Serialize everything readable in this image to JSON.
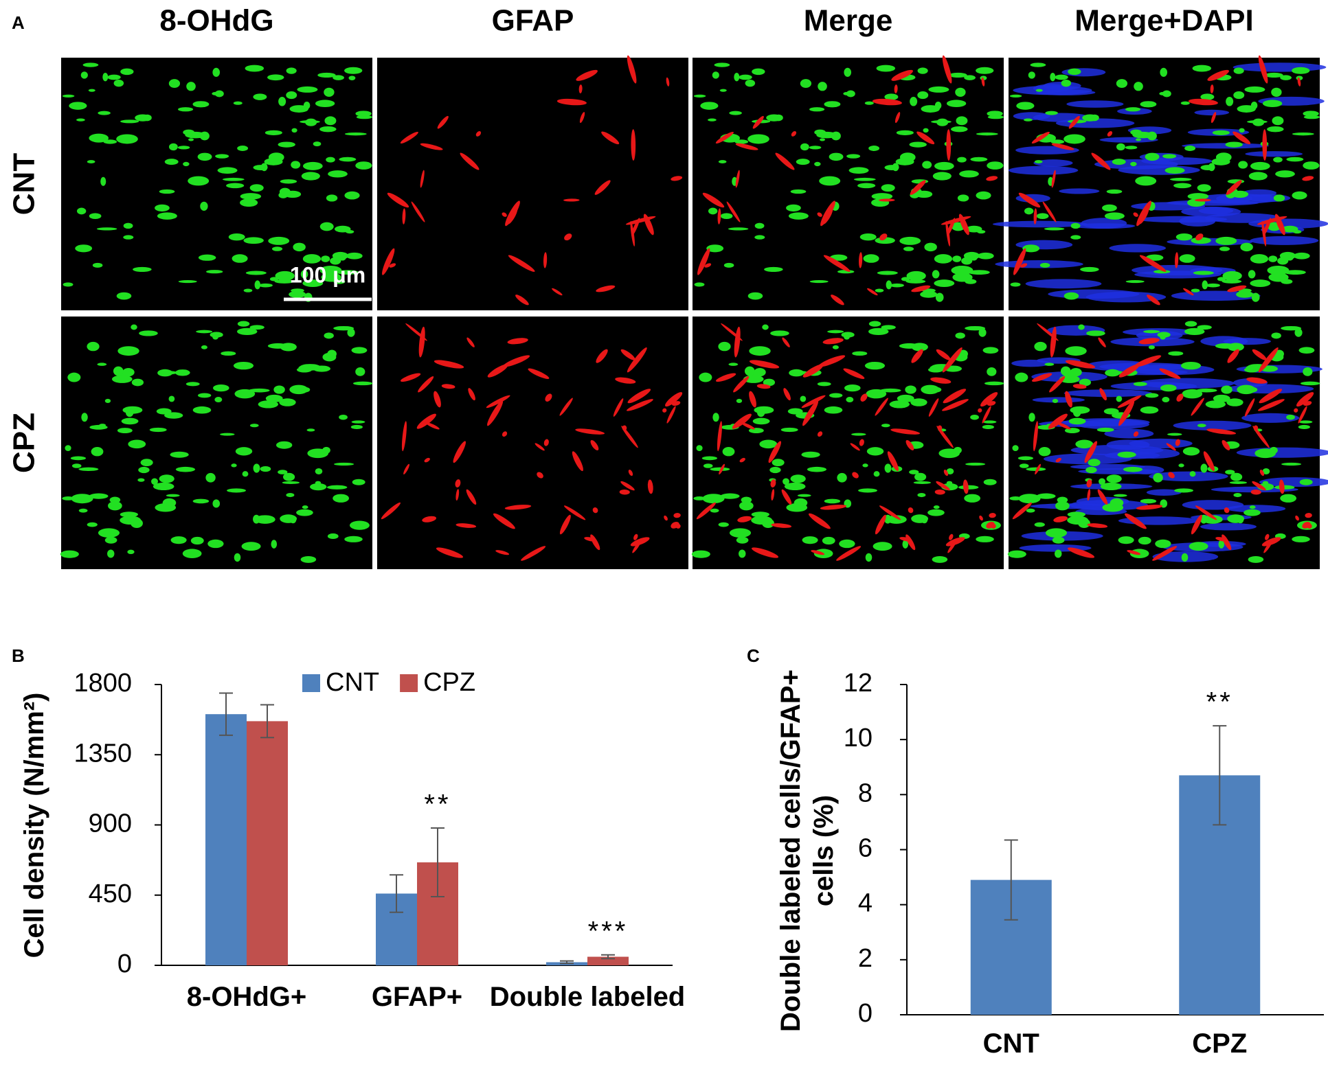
{
  "panel_labels": [
    "A",
    "B",
    "C"
  ],
  "images": {
    "columns": [
      "8-OHdG",
      "GFAP",
      "Merge",
      "Merge+DAPI"
    ],
    "rows": [
      "CNT",
      "CPZ"
    ],
    "scale_bar": "100 μm"
  },
  "chart_data": [
    {
      "type": "bar",
      "y_label": "Cell density (N/mm²)",
      "categories": [
        "8-OHdG+",
        "GFAP+",
        "Double labeled"
      ],
      "series": [
        {
          "name": "CNT",
          "color": "#4f81bd",
          "values": [
            1610,
            460,
            20
          ],
          "errors": [
            135,
            120,
            8
          ]
        },
        {
          "name": "CPZ",
          "color": "#c0504d",
          "values": [
            1565,
            660,
            55
          ],
          "errors": [
            105,
            220,
            12
          ],
          "significance": [
            null,
            "**",
            "***"
          ]
        }
      ],
      "ylim": [
        0,
        1800
      ],
      "yticks": [
        0,
        450,
        900,
        1350,
        1800
      ],
      "legend": "top"
    },
    {
      "type": "bar",
      "y_label": "Double labeled cells/GFAP+ cells (%)",
      "categories": [
        "CNT",
        "CPZ"
      ],
      "color": "#4f81bd",
      "values": [
        4.9,
        8.7
      ],
      "errors": [
        1.45,
        1.8
      ],
      "significance": [
        null,
        "**"
      ],
      "ylim": [
        0,
        12
      ],
      "yticks": [
        0,
        2,
        4,
        6,
        8,
        10,
        12
      ]
    }
  ]
}
